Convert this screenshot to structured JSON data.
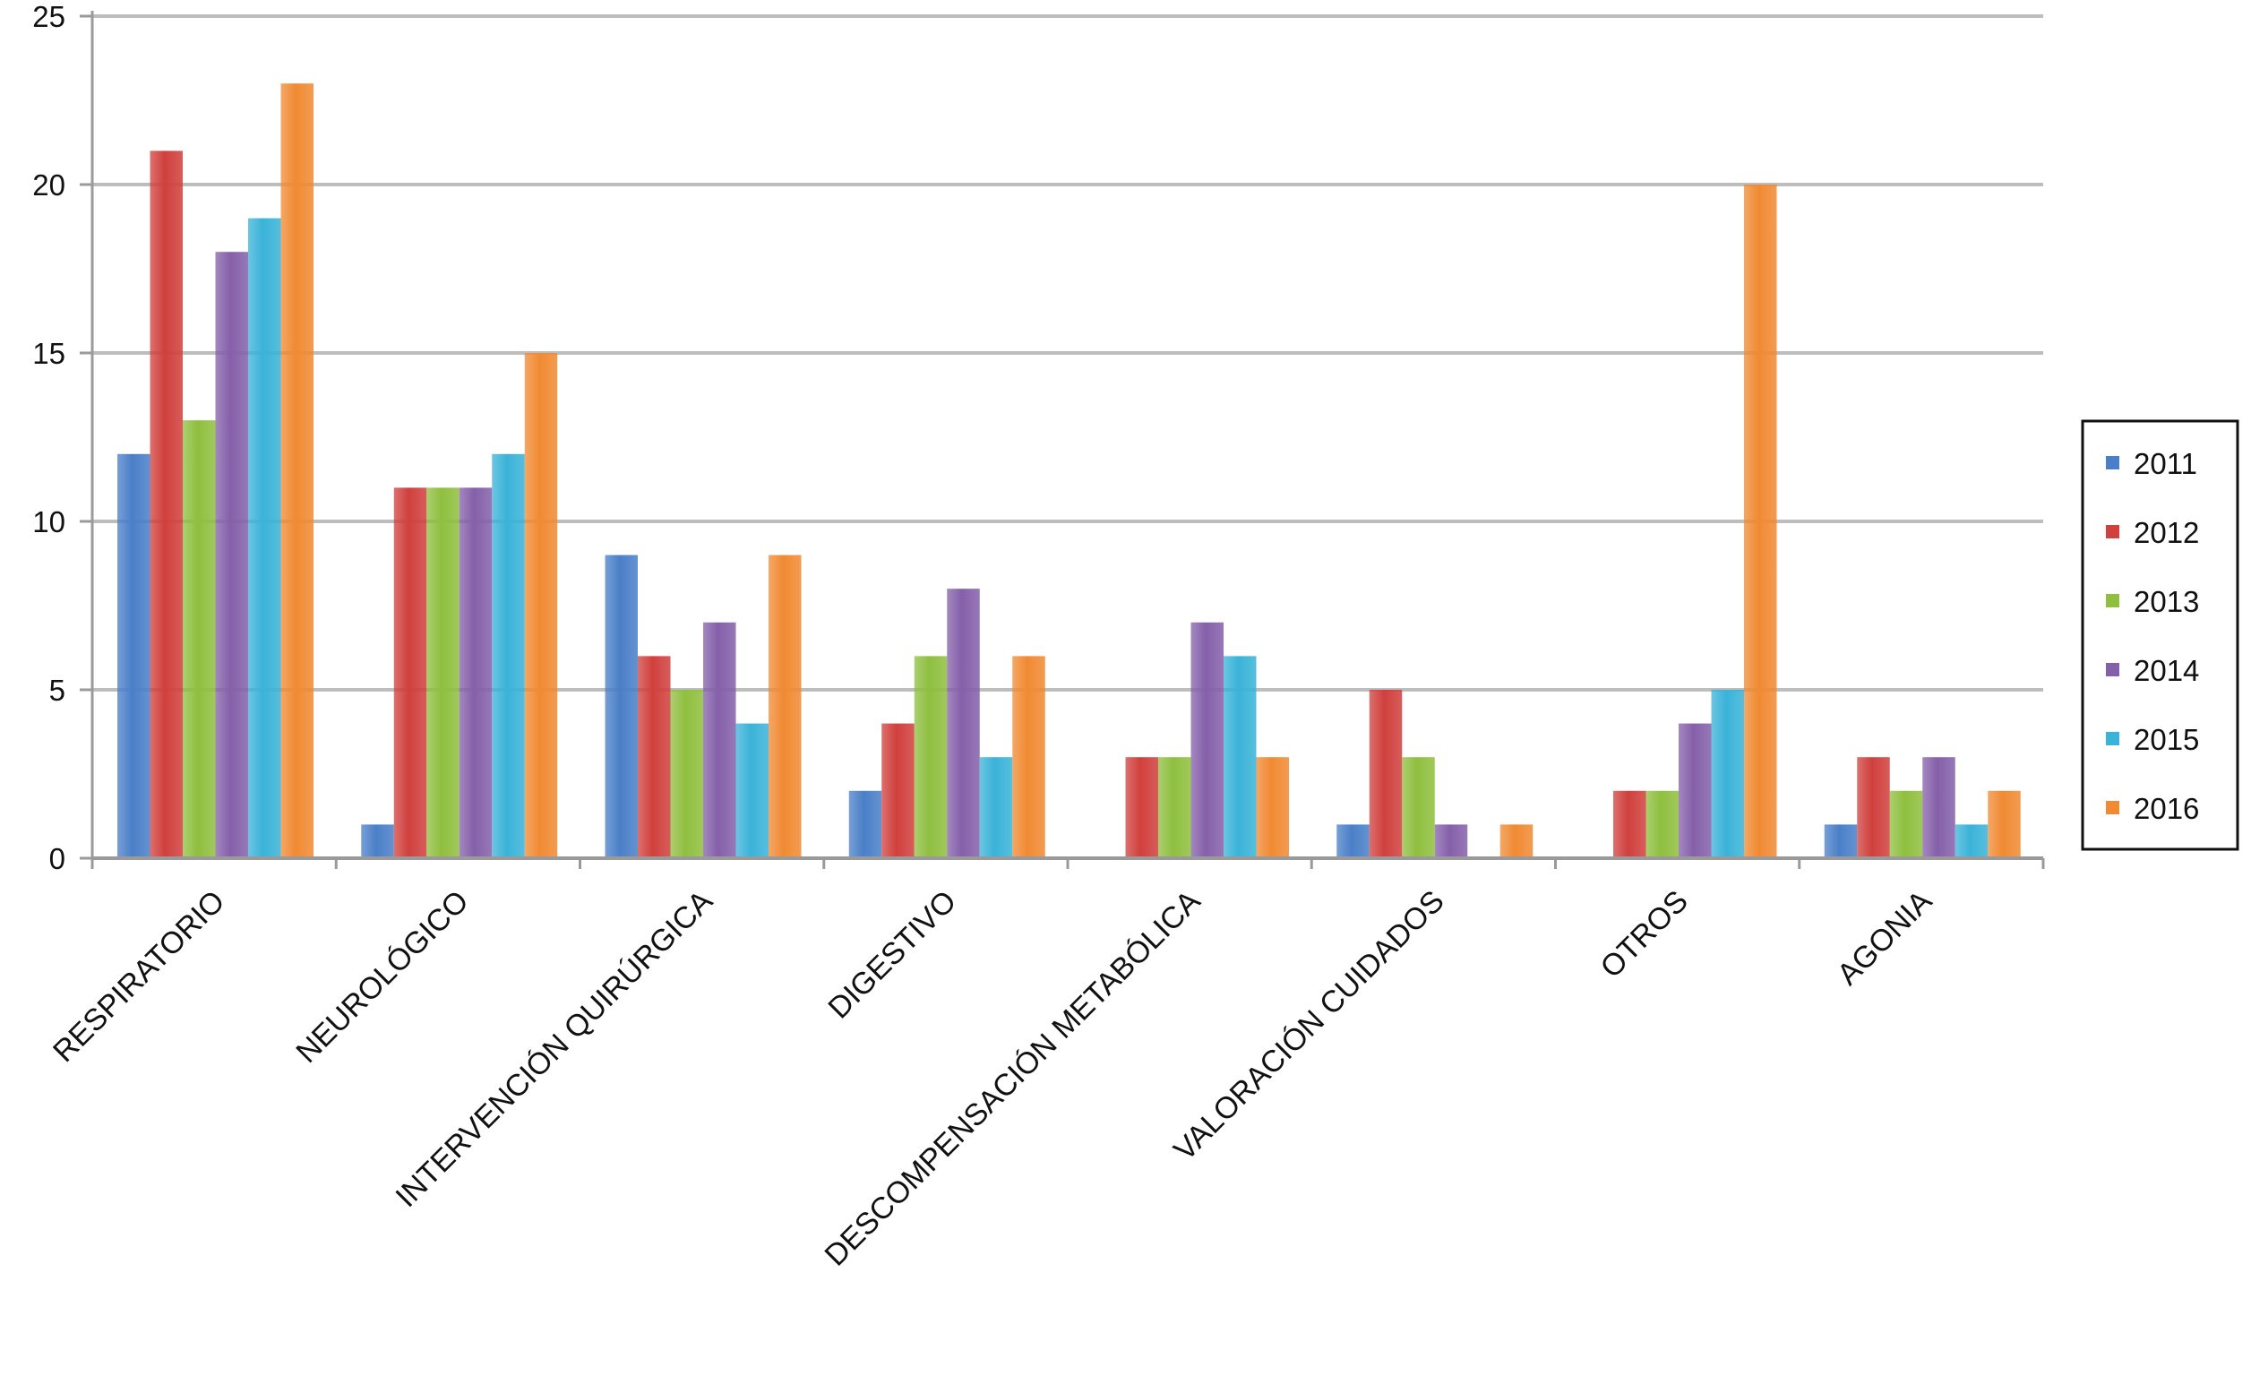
{
  "chart_data": {
    "type": "bar",
    "title": "",
    "xlabel": "",
    "ylabel": "",
    "ylim": [
      0,
      25
    ],
    "yticks": [
      0,
      5,
      10,
      15,
      20,
      25
    ],
    "grid": true,
    "legend_position": "right",
    "categories": [
      "RESPIRATORIO",
      "NEUROLÓGICO",
      "INTERVENCIÓN QUIRÚRGICA",
      "DIGESTIVO",
      "DESCOMPENSACIÓN METABÓLICA",
      "VALORACIÓN CUIDADOS",
      "OTROS",
      "AGONIA"
    ],
    "series": [
      {
        "name": "2011",
        "color": "#4a7fc8",
        "values": [
          12,
          1,
          9,
          2,
          0,
          1,
          0,
          1
        ]
      },
      {
        "name": "2012",
        "color": "#d0403d",
        "values": [
          21,
          11,
          6,
          4,
          3,
          5,
          2,
          3
        ]
      },
      {
        "name": "2013",
        "color": "#8fbf3f",
        "values": [
          13,
          11,
          5,
          6,
          3,
          3,
          2,
          2
        ]
      },
      {
        "name": "2014",
        "color": "#8560aa",
        "values": [
          18,
          11,
          7,
          8,
          7,
          1,
          4,
          3
        ]
      },
      {
        "name": "2015",
        "color": "#3ab3d8",
        "values": [
          19,
          12,
          4,
          3,
          6,
          0,
          5,
          1
        ]
      },
      {
        "name": "2016",
        "color": "#f08a33",
        "values": [
          23,
          15,
          9,
          6,
          3,
          1,
          20,
          2
        ]
      }
    ]
  }
}
